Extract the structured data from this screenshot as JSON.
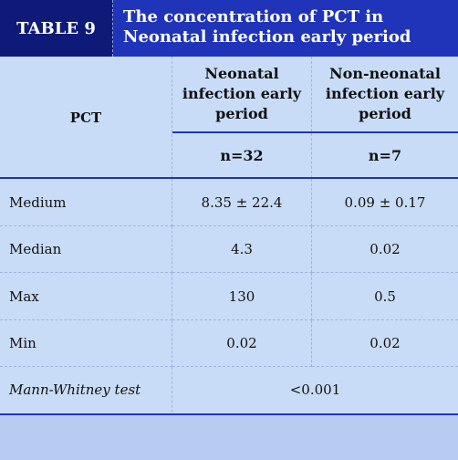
{
  "header": {
    "tag": "TABLE 9",
    "title": "The concentration of PCT in Neonatal infection early period"
  },
  "table": {
    "row_header_label": "PCT",
    "columns": [
      {
        "label": "Neonatal infection early period",
        "n": "n=32"
      },
      {
        "label": "Non-neonatal infection early period",
        "n": "n=7"
      }
    ],
    "rows": [
      {
        "label": "Medium",
        "values": [
          "8.35 ± 22.4",
          "0.09 ± 0.17"
        ]
      },
      {
        "label": "Median",
        "values": [
          "4.3",
          "0.02"
        ]
      },
      {
        "label": "Max",
        "values": [
          "130",
          "0.5"
        ]
      },
      {
        "label": "Min",
        "values": [
          "0.02",
          "0.02"
        ]
      }
    ],
    "test": {
      "label": "Mann-Whitney test",
      "value": "<0.001"
    }
  },
  "colors": {
    "tag_bg": "#0e1a78",
    "title_bg": "#1f34b8",
    "table_bg": "#c9dcf7",
    "accent_line": "#1f34b8"
  }
}
